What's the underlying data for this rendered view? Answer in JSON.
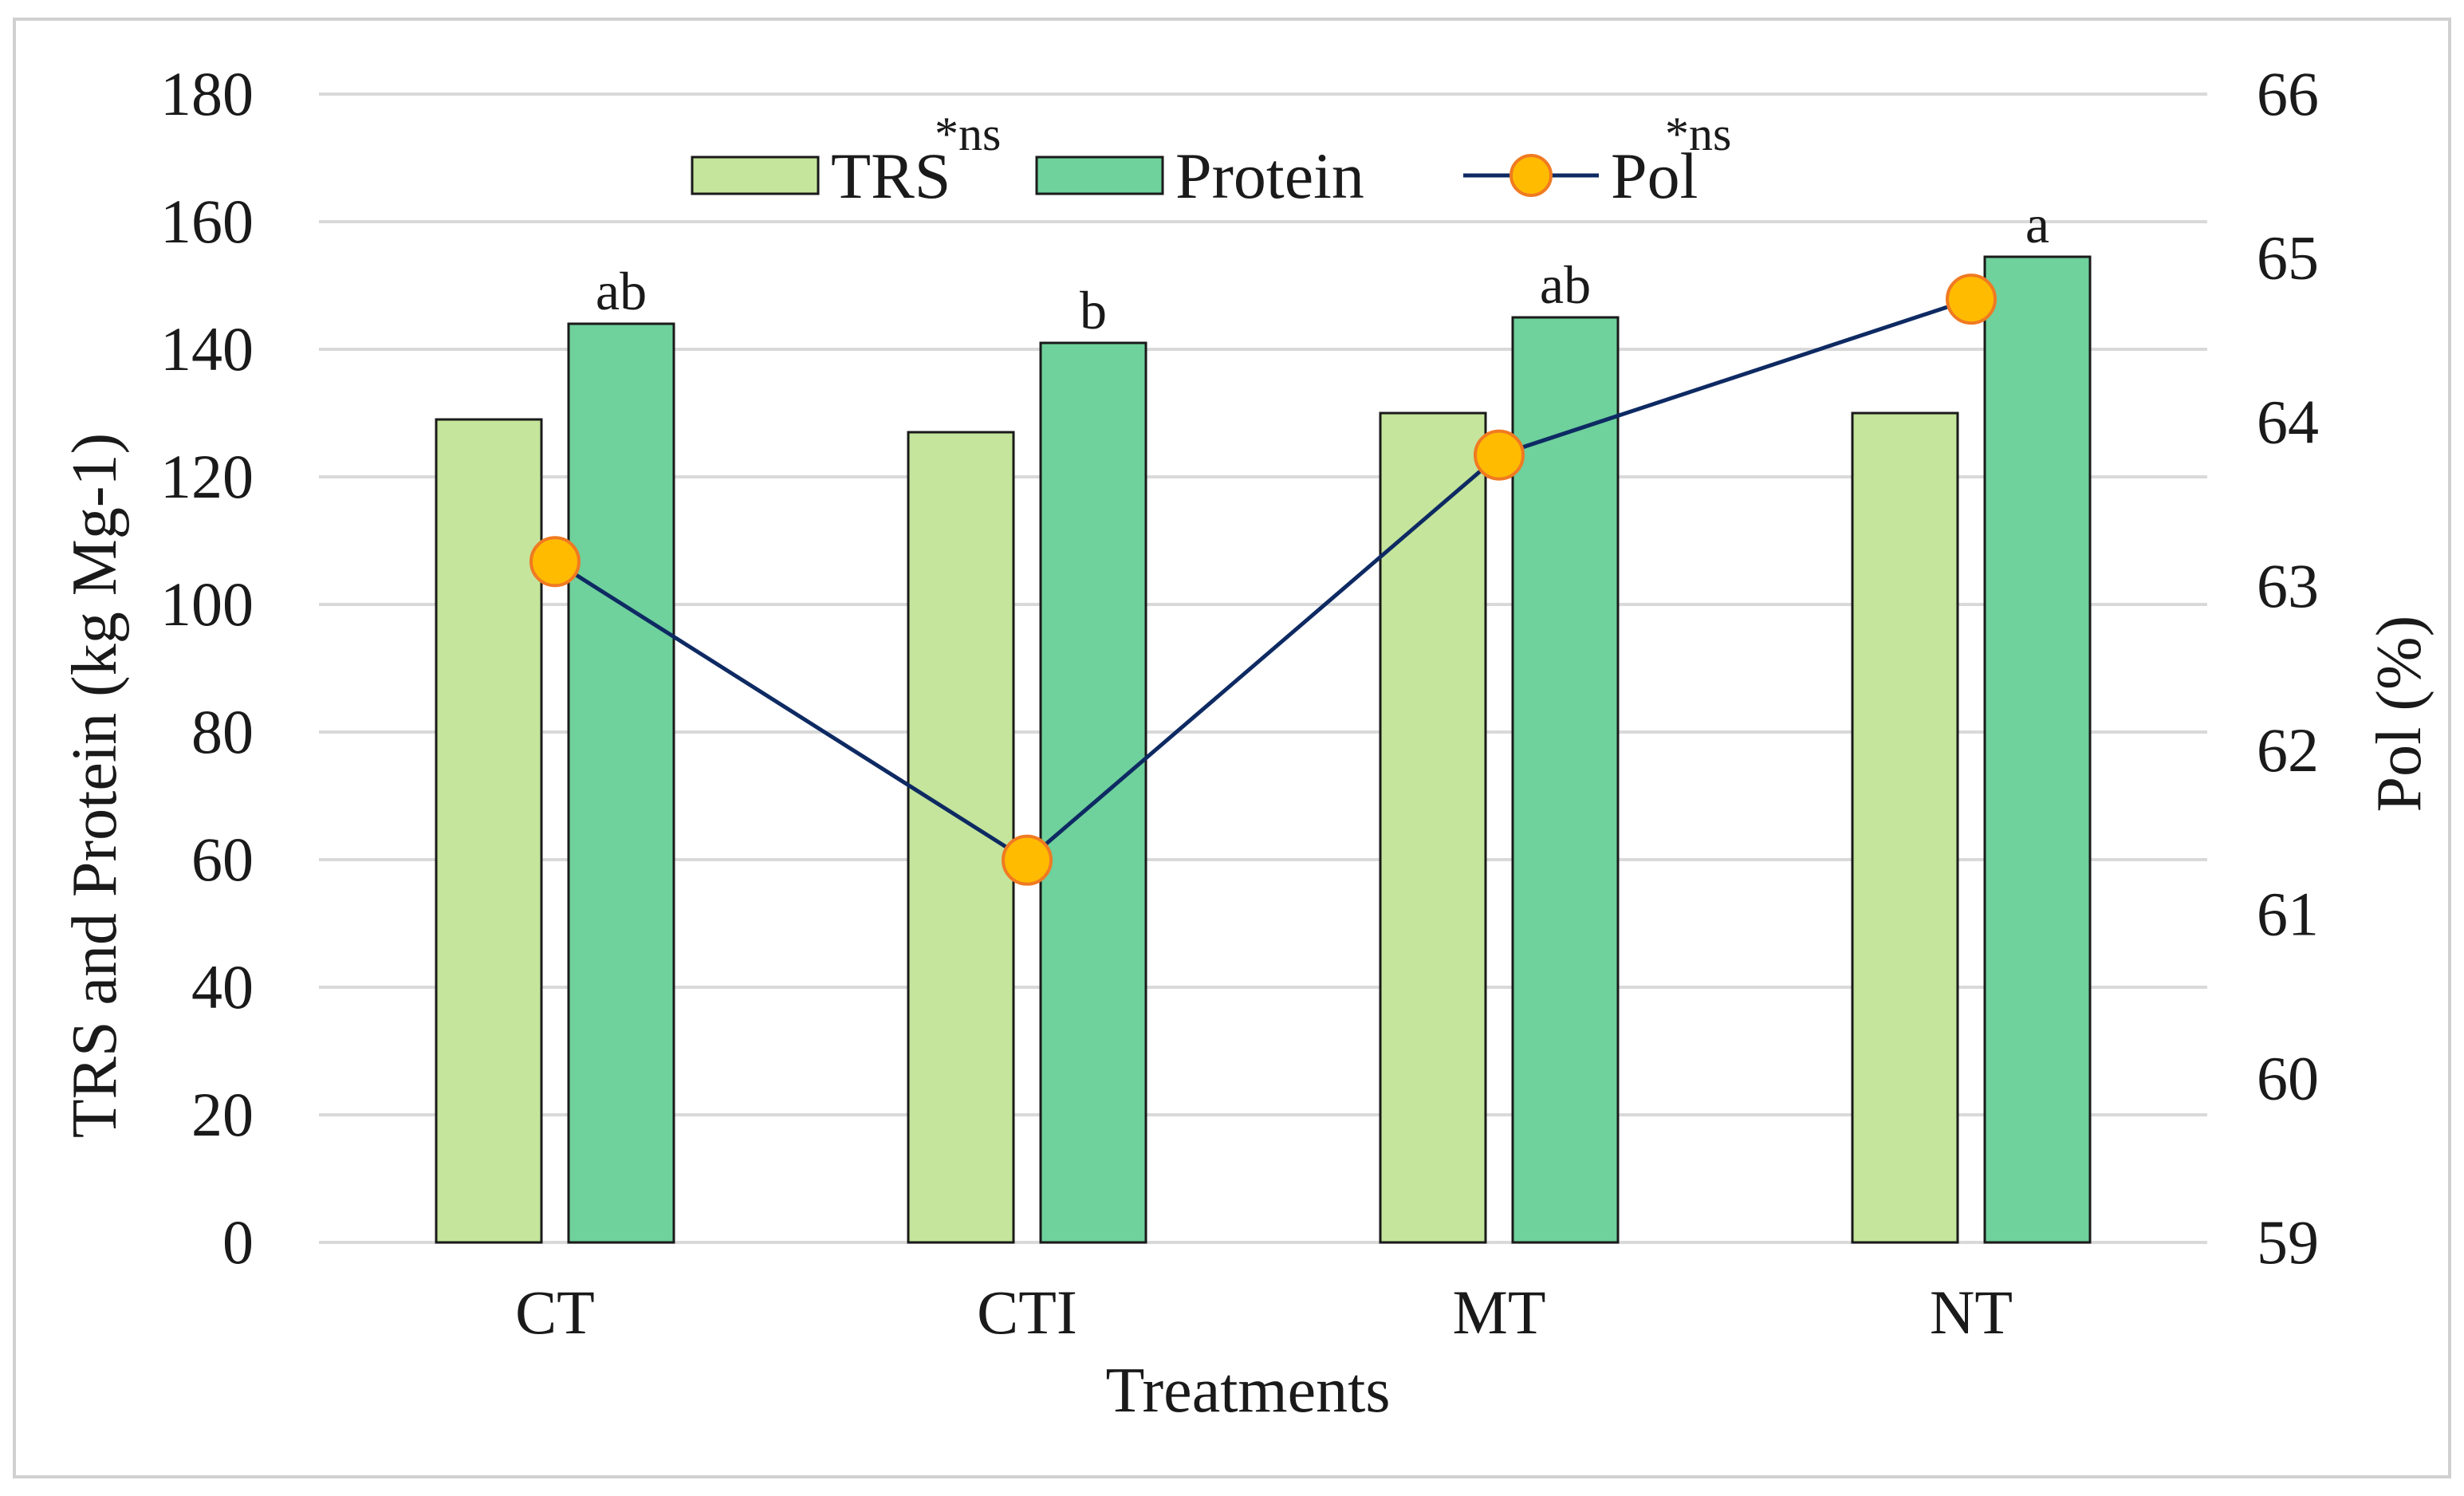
{
  "chart_data": {
    "type": "bar",
    "categories": [
      "CT",
      "CTI",
      "MT",
      "NT"
    ],
    "series": [
      {
        "name": "TRS",
        "axis": "left",
        "kind": "bar",
        "color": "#c4e59b",
        "values": [
          129,
          127,
          130,
          130
        ]
      },
      {
        "name": "Protein",
        "axis": "left",
        "kind": "bar",
        "color": "#6fd19c",
        "values": [
          144,
          141,
          145,
          154.5
        ]
      },
      {
        "name": "Pol",
        "axis": "right",
        "kind": "line",
        "line_color": "#0e2a63",
        "marker_color": "#ffbb00",
        "marker_edge": "#f07a22",
        "values": [
          63.15,
          61.33,
          63.8,
          64.75
        ]
      }
    ],
    "significance_labels": [
      "ab",
      "b",
      "ab",
      "a"
    ],
    "xlabel": "Treatments",
    "ylabel": "TRS and Protein (kg Mg-1)",
    "ylabel_right": "Pol (%)",
    "ylim": [
      0,
      180
    ],
    "ylim_right": [
      59,
      66
    ],
    "yticks": [
      "0",
      "20",
      "40",
      "60",
      "80",
      "100",
      "120",
      "140",
      "160",
      "180"
    ],
    "yticks_right": [
      "59",
      "60",
      "61",
      "62",
      "63",
      "64",
      "65",
      "66"
    ],
    "legend": [
      {
        "label": "TRS",
        "sup": "*ns"
      },
      {
        "label": "Protein",
        "sup": ""
      },
      {
        "label": "Pol",
        "sup": "*ns"
      }
    ],
    "legend_position": "top-center",
    "grid": true,
    "gridline_color": "#d9d9d9",
    "bar_edge_color": "#1a1a1a"
  }
}
